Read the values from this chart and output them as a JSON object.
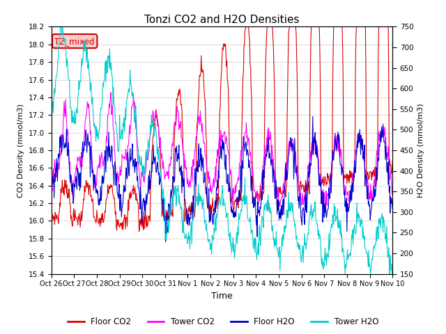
{
  "title": "Tonzi CO2 and H2O Densities",
  "xlabel": "Time",
  "ylabel_left": "CO2 Density (mmol/m3)",
  "ylabel_right": "H2O Density (mmol/m3)",
  "ylim_left": [
    15.4,
    18.2
  ],
  "ylim_right": [
    150,
    750
  ],
  "yticks_left": [
    15.4,
    15.6,
    15.8,
    16.0,
    16.2,
    16.4,
    16.6,
    16.8,
    17.0,
    17.2,
    17.4,
    17.6,
    17.8,
    18.0,
    18.2
  ],
  "yticks_right": [
    150,
    200,
    250,
    300,
    350,
    400,
    450,
    500,
    550,
    600,
    650,
    700,
    750
  ],
  "xtick_labels": [
    "Oct 26",
    "Oct 27",
    "Oct 28",
    "Oct 29",
    "Oct 30",
    "Oct 31",
    "Nov 1",
    "Nov 2",
    "Nov 3",
    "Nov 4",
    "Nov 5",
    "Nov 6",
    "Nov 7",
    "Nov 8",
    "Nov 9",
    "Nov 10"
  ],
  "annotation_text": "TZ_mixed",
  "annotation_color": "#cc0000",
  "annotation_bg": "#ffcccc",
  "annotation_border": "#cc0000",
  "floor_co2_color": "#dd0000",
  "tower_co2_color": "#ff00ff",
  "floor_h2o_color": "#0000cc",
  "tower_h2o_color": "#00cccc",
  "legend_labels": [
    "Floor CO2",
    "Tower CO2",
    "Floor H2O",
    "Tower H2O"
  ],
  "grid_color": "#cccccc",
  "background_color": "#ffffff",
  "figsize": [
    6.4,
    4.8
  ],
  "dpi": 100
}
